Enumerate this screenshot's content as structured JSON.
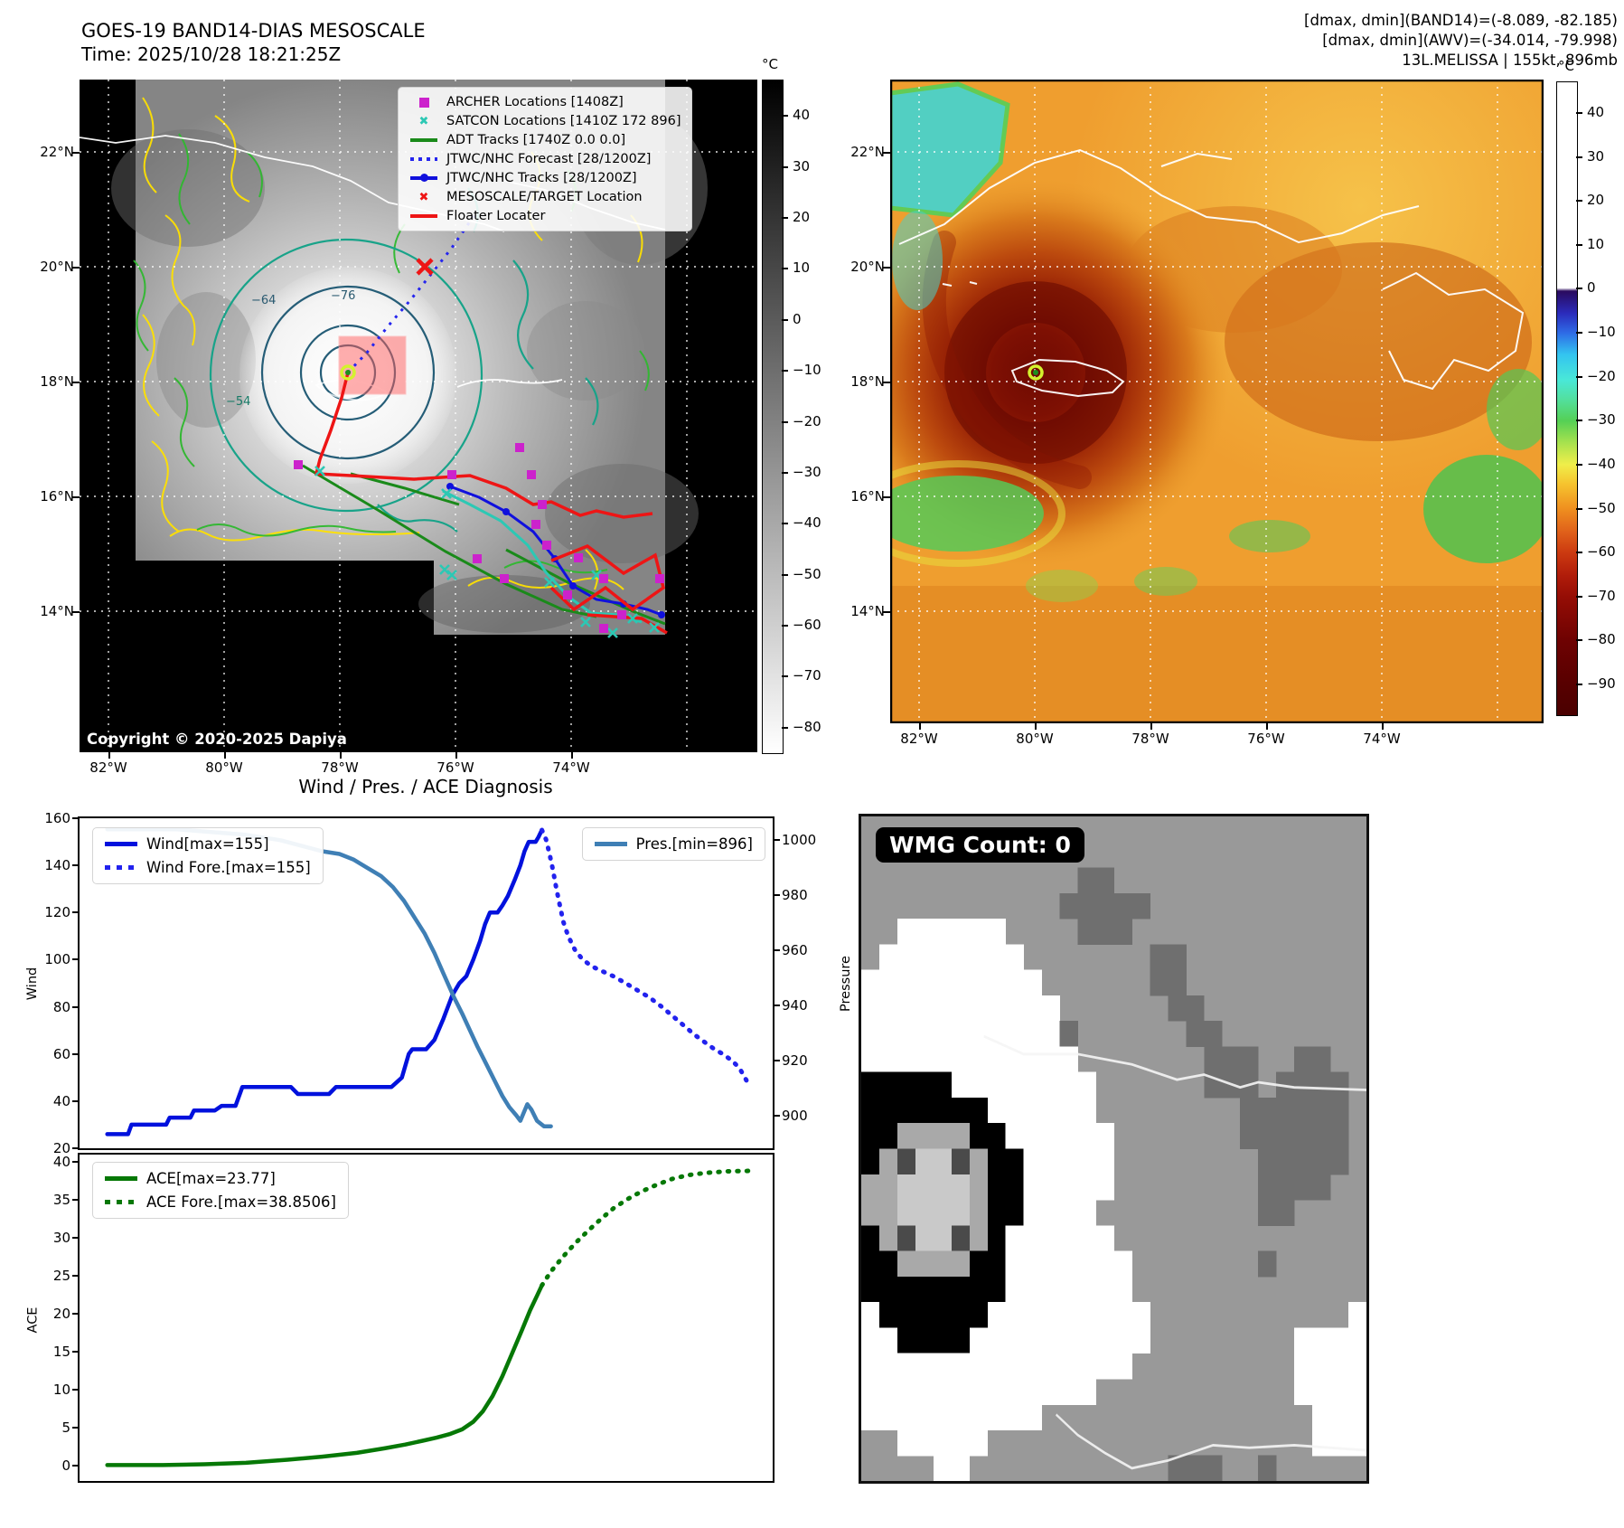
{
  "header": {
    "title_line1": "GOES-19 BAND14-DIAS MESOSCALE",
    "title_line2": "Time: 2025/10/28 18:21:25Z",
    "info_line1": "[dmax, dmin](BAND14)=(-8.089, -82.185)",
    "info_line2": "[dmax, dmin](AWV)=(-34.014, -79.998)",
    "info_line3": "13L.MELISSA | 155kt, 896mb"
  },
  "left_map": {
    "copyright": "Copyright © 2020-2025 Dapiya",
    "x_ticks": [
      "82°W",
      "80°W",
      "78°W",
      "76°W",
      "74°W"
    ],
    "y_ticks": [
      "22°N",
      "20°N",
      "18°N",
      "16°N",
      "14°N"
    ],
    "contour_labels": [
      "−54",
      "−64",
      "−76"
    ],
    "colorbar": {
      "unit": "°C",
      "ticks": [
        "40",
        "30",
        "20",
        "10",
        "0",
        "−10",
        "−20",
        "−30",
        "−40",
        "−50",
        "−60",
        "−70",
        "−80"
      ]
    },
    "legend": [
      {
        "label": "ARCHER Locations [1408Z]",
        "marker": "square",
        "color": "#cc22cc"
      },
      {
        "label": "SATCON Locations [1410Z 172 896]",
        "marker": "x",
        "color": "#2cc8b4"
      },
      {
        "label": "ADT Tracks [1740Z 0.0 0.0]",
        "marker": "line",
        "color": "#1a8a1a"
      },
      {
        "label": "JTWC/NHC Forecast [28/1200Z]",
        "marker": "dotted",
        "color": "#2525ee"
      },
      {
        "label": "JTWC/NHC Tracks [28/1200Z]",
        "marker": "line-dot",
        "color": "#1010dd"
      },
      {
        "label": "MESOSCALE/TARGET Location",
        "marker": "x",
        "color": "#ee1515"
      },
      {
        "label": "Floater Locater",
        "marker": "line",
        "color": "#ee1515"
      }
    ]
  },
  "right_map": {
    "x_ticks": [
      "82°W",
      "80°W",
      "78°W",
      "76°W",
      "74°W"
    ],
    "y_ticks": [
      "22°N",
      "20°N",
      "18°N",
      "16°N",
      "14°N"
    ],
    "colorbar": {
      "unit": "°C",
      "ticks": [
        "40",
        "30",
        "20",
        "10",
        "0",
        "−10",
        "−20",
        "−30",
        "−40",
        "−50",
        "−60",
        "−70",
        "−80",
        "−90"
      ]
    }
  },
  "charts": {
    "title": "Wind / Pres. / ACE Diagnosis"
  },
  "wmg": {
    "badge_label": "WMG Count: 0",
    "palette": {
      ".": "#999999",
      "W": "#ffffff",
      "B": "#000000",
      "D": "#6f6f6f",
      "g": "#a9a9a9",
      "L": "#c9c9c9",
      "d": "#4a4a4a"
    },
    "grid": [
      "............................",
      "............................",
      "............DD..............",
      "...........DDDDD............",
      "..WWWWWW....DDD.............",
      ".WWWWWWWW.......DD..........",
      "WWWWWWWWWW......DD..........",
      "WWWWWWWWWWW......DD.........",
      "WWWWWWWWWWWD......DD........",
      "WWWWWWWWWWWW.......DDD..DD..",
      "BBBBBWWWWWWWW......DDD.DDDD.",
      "BBBBBBBWWWWWW........DDDDDD.",
      "BBggggBBWWWWWW.......DDDDDD.",
      "BgdLLdgBBWWWWW........DDDDD.",
      "ggLLLLgBBWWWWW........DDDD..",
      "ggLLLLgBBWWWW.........DD....",
      "BgdLLdgBWWWWWW..............",
      "BBggggBBWWWWWWW.......D.....",
      "BBBBBBBBWWWWWWW.............",
      "WBBBBBBWWWWWWWWW...........W",
      "WWBBBBWWWWWWWWWW........WWWW",
      "WWWWWWWWWWWWWWW.........WWWW",
      "WWWWWWWWWWWWW...........WWWW",
      "WWWWWWWWWW...............WWW",
      "..WWWWW..................WWW",
      "....WW...........DDD..D....."
    ]
  },
  "chart_data": [
    {
      "type": "line",
      "subplot": "wind_pressure",
      "title": "Wind / Pres. / ACE Diagnosis",
      "xlabel": "",
      "ylabel_left": "Wind",
      "ylabel_right": "Pressure",
      "ylim_left": [
        20,
        160
      ],
      "ylim_right": [
        888,
        1008
      ],
      "yticks_left": [
        160,
        140,
        120,
        100,
        80,
        60,
        40,
        20
      ],
      "yticks_right": [
        1000,
        980,
        960,
        940,
        920,
        900
      ],
      "x_note": "x is normalized time fraction 0-1 (no tick labels shown)",
      "series": [
        {
          "name": "Wind[max=155]",
          "style": "solid",
          "color": "#0011dd",
          "axis": "left",
          "points": [
            [
              0.04,
              26
            ],
            [
              0.07,
              26
            ],
            [
              0.075,
              30
            ],
            [
              0.125,
              30
            ],
            [
              0.13,
              33
            ],
            [
              0.16,
              33
            ],
            [
              0.165,
              36
            ],
            [
              0.195,
              36
            ],
            [
              0.205,
              38
            ],
            [
              0.225,
              38
            ],
            [
              0.235,
              46
            ],
            [
              0.305,
              46
            ],
            [
              0.315,
              43
            ],
            [
              0.36,
              43
            ],
            [
              0.37,
              46
            ],
            [
              0.45,
              46
            ],
            [
              0.465,
              50
            ],
            [
              0.475,
              60
            ],
            [
              0.48,
              62
            ],
            [
              0.5,
              62
            ],
            [
              0.512,
              66
            ],
            [
              0.525,
              75
            ],
            [
              0.538,
              85
            ],
            [
              0.548,
              90
            ],
            [
              0.558,
              93
            ],
            [
              0.568,
              100
            ],
            [
              0.578,
              108
            ],
            [
              0.585,
              115
            ],
            [
              0.592,
              120
            ],
            [
              0.603,
              120
            ],
            [
              0.61,
              123
            ],
            [
              0.618,
              127
            ],
            [
              0.628,
              134
            ],
            [
              0.636,
              140
            ],
            [
              0.642,
              146
            ],
            [
              0.648,
              150
            ],
            [
              0.658,
              150
            ],
            [
              0.662,
              152
            ],
            [
              0.667,
              155
            ]
          ]
        },
        {
          "name": "Wind Fore.[max=155]",
          "style": "dotted",
          "color": "#2222ee",
          "axis": "left",
          "points": [
            [
              0.667,
              155
            ],
            [
              0.673,
              151
            ],
            [
              0.678,
              145
            ],
            [
              0.683,
              138
            ],
            [
              0.688,
              130
            ],
            [
              0.693,
              123
            ],
            [
              0.698,
              116
            ],
            [
              0.705,
              110
            ],
            [
              0.715,
              104
            ],
            [
              0.726,
              100
            ],
            [
              0.74,
              97
            ],
            [
              0.755,
              95
            ],
            [
              0.77,
              93
            ],
            [
              0.788,
              90
            ],
            [
              0.805,
              87
            ],
            [
              0.822,
              84
            ],
            [
              0.84,
              80
            ],
            [
              0.856,
              76
            ],
            [
              0.872,
              72
            ],
            [
              0.888,
              68
            ],
            [
              0.902,
              65
            ],
            [
              0.916,
              62
            ],
            [
              0.928,
              60
            ],
            [
              0.942,
              57
            ],
            [
              0.952,
              54
            ],
            [
              0.96,
              50
            ],
            [
              0.967,
              46
            ]
          ]
        },
        {
          "name": "Pres.[min=896]",
          "style": "solid",
          "color": "#3f7fb5",
          "axis": "right",
          "points": [
            [
              0.04,
              1004
            ],
            [
              0.14,
              1004
            ],
            [
              0.19,
              1003
            ],
            [
              0.24,
              1002
            ],
            [
              0.29,
              1000
            ],
            [
              0.32,
              998
            ],
            [
              0.35,
              996
            ],
            [
              0.375,
              995
            ],
            [
              0.395,
              993
            ],
            [
              0.415,
              990
            ],
            [
              0.435,
              987
            ],
            [
              0.452,
              983
            ],
            [
              0.468,
              978
            ],
            [
              0.483,
              972
            ],
            [
              0.498,
              966
            ],
            [
              0.512,
              959
            ],
            [
              0.526,
              951
            ],
            [
              0.54,
              943
            ],
            [
              0.552,
              937
            ],
            [
              0.563,
              931
            ],
            [
              0.574,
              925
            ],
            [
              0.586,
              919
            ],
            [
              0.598,
              913
            ],
            [
              0.61,
              907
            ],
            [
              0.62,
              903
            ],
            [
              0.63,
              900
            ],
            [
              0.636,
              898
            ],
            [
              0.641,
              901
            ],
            [
              0.646,
              904
            ],
            [
              0.652,
              902
            ],
            [
              0.66,
              898
            ],
            [
              0.67,
              896
            ],
            [
              0.68,
              896
            ]
          ]
        }
      ]
    },
    {
      "type": "line",
      "subplot": "ace",
      "ylabel_left": "ACE",
      "ylim_left": [
        -2,
        41
      ],
      "yticks_left": [
        40,
        35,
        30,
        25,
        20,
        15,
        10,
        5,
        0
      ],
      "series": [
        {
          "name": "ACE[max=23.77]",
          "style": "solid",
          "color": "#067806",
          "axis": "left",
          "points": [
            [
              0.04,
              0.1
            ],
            [
              0.12,
              0.1
            ],
            [
              0.18,
              0.2
            ],
            [
              0.24,
              0.4
            ],
            [
              0.3,
              0.8
            ],
            [
              0.35,
              1.2
            ],
            [
              0.4,
              1.7
            ],
            [
              0.44,
              2.3
            ],
            [
              0.47,
              2.8
            ],
            [
              0.495,
              3.3
            ],
            [
              0.515,
              3.7
            ],
            [
              0.535,
              4.2
            ],
            [
              0.552,
              4.8
            ],
            [
              0.568,
              5.8
            ],
            [
              0.582,
              7.2
            ],
            [
              0.596,
              9.2
            ],
            [
              0.61,
              11.8
            ],
            [
              0.624,
              14.8
            ],
            [
              0.638,
              17.8
            ],
            [
              0.65,
              20.5
            ],
            [
              0.66,
              22.4
            ],
            [
              0.667,
              23.77
            ]
          ]
        },
        {
          "name": "ACE Fore.[max=38.8506]",
          "style": "dotted",
          "color": "#067806",
          "axis": "left",
          "points": [
            [
              0.667,
              23.77
            ],
            [
              0.68,
              25.6
            ],
            [
              0.698,
              27.6
            ],
            [
              0.716,
              29.4
            ],
            [
              0.734,
              31.0
            ],
            [
              0.752,
              32.5
            ],
            [
              0.77,
              33.9
            ],
            [
              0.79,
              35.1
            ],
            [
              0.81,
              36.1
            ],
            [
              0.832,
              37.0
            ],
            [
              0.855,
              37.8
            ],
            [
              0.878,
              38.3
            ],
            [
              0.905,
              38.6
            ],
            [
              0.935,
              38.8
            ],
            [
              0.967,
              38.85
            ]
          ]
        }
      ]
    }
  ]
}
